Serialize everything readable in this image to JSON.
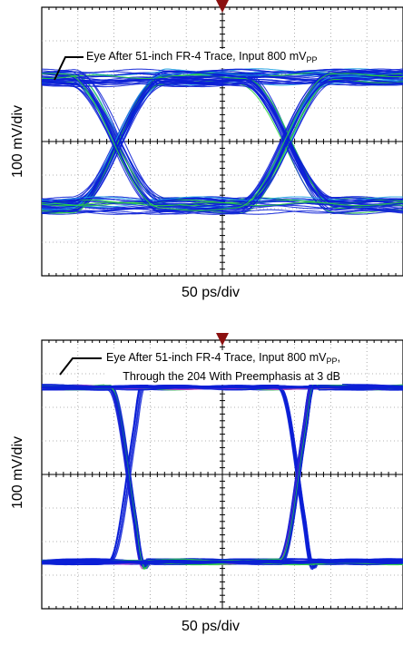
{
  "charts": [
    {
      "ylabel": "100 mV/div",
      "xlabel": "50 ps/div",
      "annotation_lines": [
        {
          "text": "Eye After 51-inch FR-4 Trace, Input 800 mV",
          "sub": "PP",
          "tail": ""
        }
      ]
    },
    {
      "ylabel": "100 mV/div",
      "xlabel": "50 ps/div",
      "annotation_lines": [
        {
          "text": "Eye After 51-inch FR-4 Trace, Input 800 mV",
          "sub": "PP",
          "tail": ","
        },
        {
          "text": "Through the 204 With Preemphasis at 3 dB",
          "sub": "",
          "tail": ""
        }
      ]
    }
  ],
  "chart_data": [
    {
      "type": "eye-diagram",
      "ylabel": "100 mV/div",
      "xlabel": "50 ps/div",
      "grid": true,
      "divisions": {
        "x": 10,
        "y": 8
      },
      "trigger_marker": "top-center",
      "eye": {
        "levels_div": [
          -1.9,
          1.9
        ],
        "crossing_x_div": [
          2.1,
          6.8
        ],
        "amplitude_scatter": "high",
        "colors": [
          "#0b1fd6",
          "#28d23c",
          "#1a9fe0"
        ]
      }
    },
    {
      "type": "eye-diagram",
      "ylabel": "100 mV/div",
      "xlabel": "50 ps/div",
      "grid": true,
      "divisions": {
        "x": 10,
        "y": 8
      },
      "trigger_marker": "top-center",
      "eye": {
        "levels_div": [
          -2.6,
          2.6
        ],
        "crossing_x_div": [
          2.4,
          7.1
        ],
        "amplitude_scatter": "low",
        "colors": [
          "#0b1fd6",
          "#28d23c",
          "#cc33cc"
        ]
      }
    }
  ]
}
